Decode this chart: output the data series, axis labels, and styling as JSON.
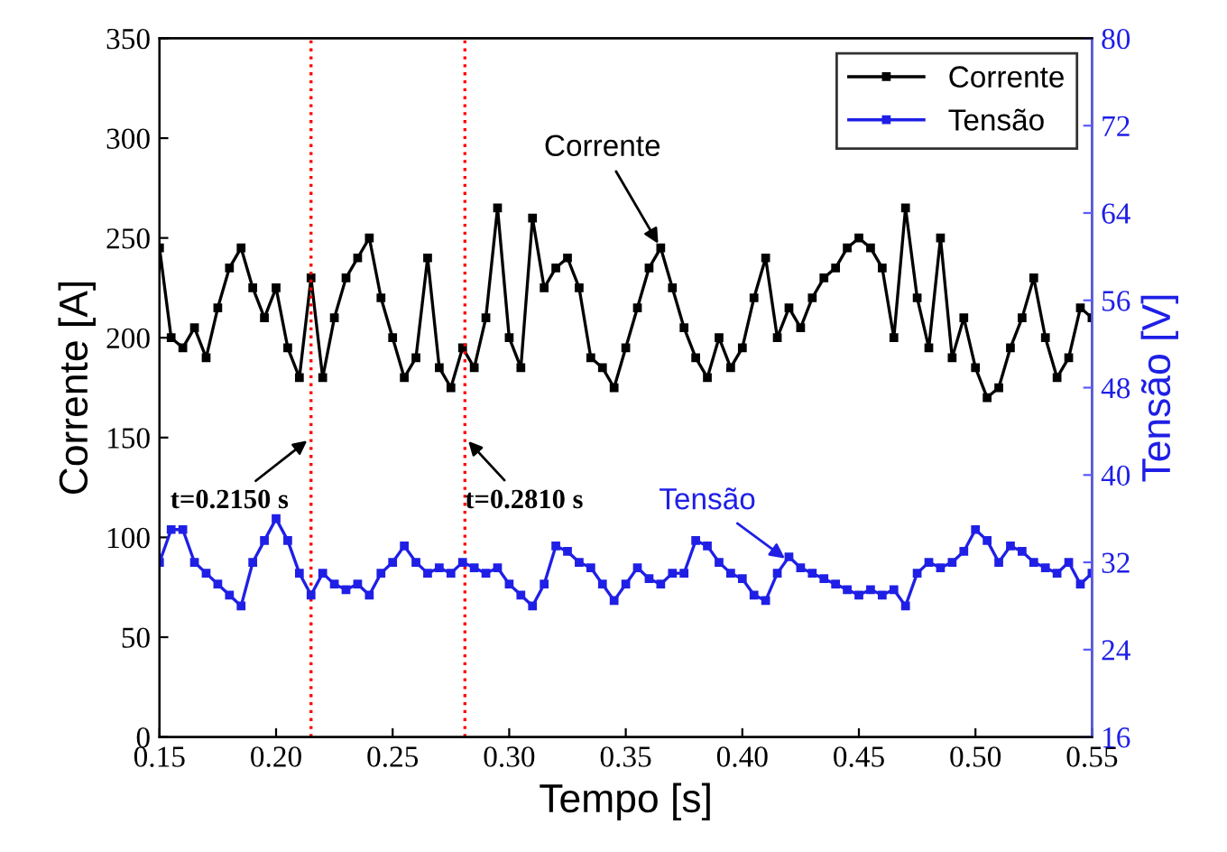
{
  "chart_data": {
    "type": "line",
    "xlabel": "Tempo [s]",
    "ylabel": "Corrente [A]",
    "y2label": "Tensão [V]",
    "x": [
      0.15,
      0.155,
      0.16,
      0.165,
      0.17,
      0.175,
      0.18,
      0.185,
      0.19,
      0.195,
      0.2,
      0.205,
      0.21,
      0.215,
      0.22,
      0.225,
      0.23,
      0.235,
      0.24,
      0.245,
      0.25,
      0.255,
      0.26,
      0.265,
      0.27,
      0.275,
      0.28,
      0.285,
      0.29,
      0.295,
      0.3,
      0.305,
      0.31,
      0.315,
      0.32,
      0.325,
      0.33,
      0.335,
      0.34,
      0.345,
      0.35,
      0.355,
      0.36,
      0.365,
      0.37,
      0.375,
      0.38,
      0.385,
      0.39,
      0.395,
      0.4,
      0.405,
      0.41,
      0.415,
      0.42,
      0.425,
      0.43,
      0.435,
      0.44,
      0.445,
      0.45,
      0.455,
      0.46,
      0.465,
      0.47,
      0.475,
      0.48,
      0.485,
      0.49,
      0.495,
      0.5,
      0.505,
      0.51,
      0.515,
      0.52,
      0.525,
      0.53,
      0.535,
      0.54,
      0.545,
      0.55
    ],
    "series": [
      {
        "name": "Corrente",
        "color": "#000000",
        "values": [
          245,
          200,
          195,
          205,
          190,
          215,
          235,
          245,
          225,
          210,
          225,
          195,
          180,
          230,
          180,
          210,
          230,
          240,
          250,
          220,
          200,
          180,
          190,
          240,
          185,
          175,
          195,
          185,
          210,
          265,
          200,
          185,
          260,
          225,
          235,
          240,
          225,
          190,
          185,
          175,
          195,
          215,
          235,
          245,
          225,
          205,
          190,
          180,
          200,
          185,
          195,
          220,
          240,
          200,
          215,
          205,
          220,
          230,
          235,
          245,
          250,
          245,
          235,
          200,
          265,
          220,
          195,
          250,
          190,
          210,
          185,
          170,
          175,
          195,
          210,
          230,
          200,
          180,
          190,
          215,
          210
        ]
      },
      {
        "name": "Tensão",
        "color": "#1f1fe6",
        "axis": "y2",
        "values": [
          32,
          35,
          35,
          32,
          31,
          30,
          29,
          28,
          32,
          34,
          36,
          34,
          31,
          29,
          31,
          30,
          29.5,
          30,
          29,
          31,
          32,
          33.5,
          32,
          31,
          31.5,
          31,
          32,
          31.5,
          31,
          31.5,
          30,
          29,
          28,
          30,
          33.5,
          33,
          32,
          31.5,
          30,
          28.5,
          30,
          31.5,
          30.5,
          30,
          31,
          31,
          34,
          33.5,
          32,
          31,
          30.5,
          29,
          28.5,
          31,
          32.5,
          31.5,
          31,
          30.5,
          30,
          29.5,
          29,
          29.5,
          29,
          29.5,
          28,
          31,
          32,
          31.5,
          32,
          33,
          35,
          34,
          32,
          33.5,
          33,
          32,
          31.5,
          31,
          32,
          30,
          31
        ]
      }
    ],
    "xlim": [
      0.15,
      0.55
    ],
    "xticks": [
      0.15,
      {
        "value": 0.2,
        "label": "0.20"
      },
      0.25,
      {
        "value": 0.3,
        "label": "0.30"
      },
      0.35,
      {
        "value": 0.4,
        "label": "0.40"
      },
      0.45,
      {
        "value": 0.5,
        "label": "0.50"
      },
      0.55
    ],
    "ylim": [
      0,
      350
    ],
    "yticks": [
      0,
      50,
      100,
      150,
      200,
      250,
      300,
      350
    ],
    "y2lim": [
      16,
      80
    ],
    "y2ticks": [
      16,
      24,
      32,
      40,
      48,
      56,
      64,
      72,
      80
    ],
    "marker": "square",
    "line_style": "solid",
    "legend": "top right",
    "grid": false,
    "ref_lines": [
      {
        "axis": "x",
        "value": 0.215,
        "color": "#ff0000",
        "line_style": "dotted"
      },
      {
        "axis": "x",
        "value": 0.281,
        "color": "#ff0000",
        "line_style": "dotted"
      }
    ],
    "annotations": [
      {
        "text": "Corrente",
        "x": 0.365,
        "y": 245
      },
      {
        "text": "Tensão",
        "x": 0.42,
        "y": 88
      },
      {
        "text": "t=0.2150 s",
        "x": 0.215,
        "y": 150
      },
      {
        "text": "t=0.2810 s",
        "x": 0.281,
        "y": 150
      }
    ]
  }
}
